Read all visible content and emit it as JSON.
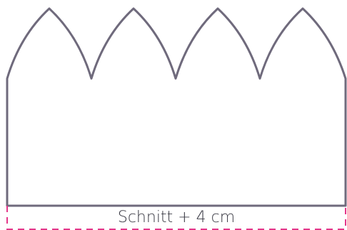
{
  "pattern": {
    "seam_label": "Schnitt + 4 cm",
    "colors": {
      "outline": "#6f6a7c",
      "cut_guide": "#e4378a",
      "label": "#3a3a44"
    }
  }
}
